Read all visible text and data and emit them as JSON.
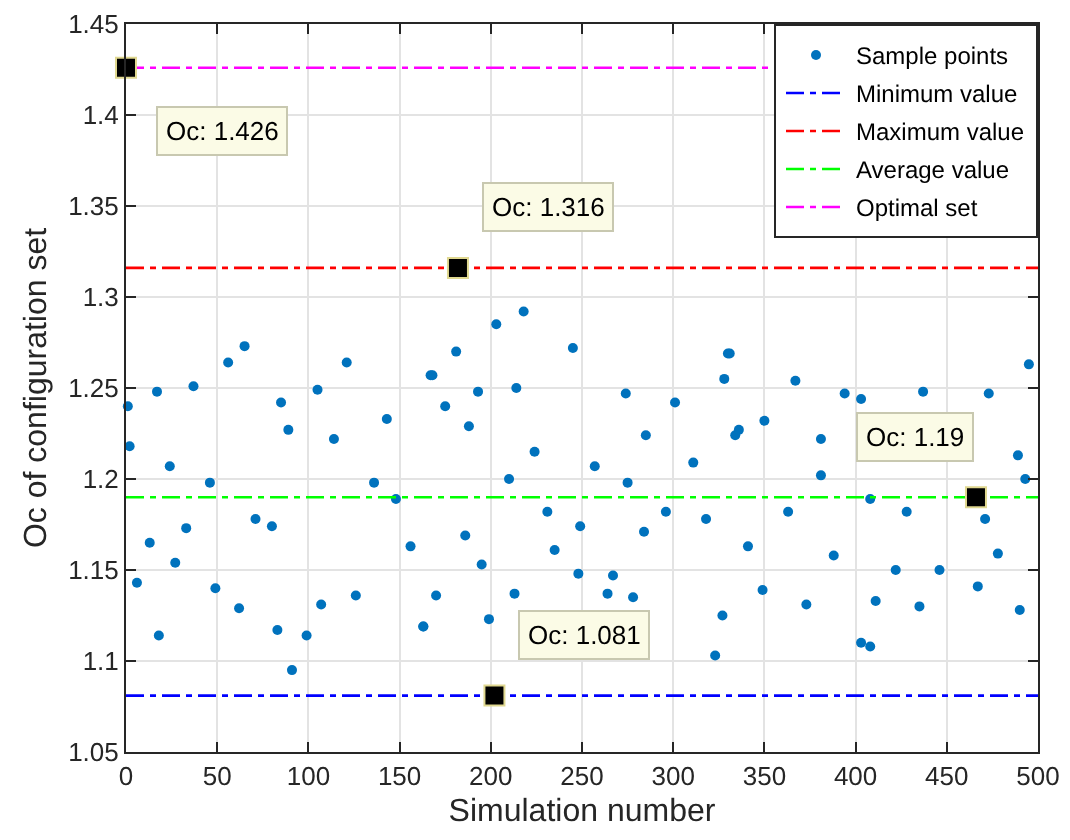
{
  "chart_data": {
    "type": "scatter",
    "xlabel": "Simulation number",
    "ylabel": "Oc of configuration set",
    "xlim": [
      0,
      500
    ],
    "ylim": [
      1.05,
      1.45
    ],
    "xticks": [
      0,
      50,
      100,
      150,
      200,
      250,
      300,
      350,
      400,
      450,
      500
    ],
    "yticks": [
      1.05,
      1.1,
      1.15,
      1.2,
      1.25,
      1.3,
      1.35,
      1.4,
      1.45
    ],
    "grid": true,
    "legend": "top right",
    "marker": "circle",
    "series": [
      {
        "name": "Sample points",
        "color": "#0072bd",
        "x": [
          1,
          2,
          6,
          13,
          17,
          18,
          24,
          27,
          33,
          37,
          46,
          49,
          56,
          62,
          65,
          71,
          80,
          83,
          85,
          89,
          91,
          99,
          105,
          107,
          114,
          121,
          126,
          136,
          143,
          148,
          156,
          163,
          163,
          167,
          168,
          170,
          175,
          181,
          186,
          188,
          193,
          195,
          199,
          203,
          210,
          213,
          214,
          218,
          224,
          231,
          235,
          245,
          248,
          249,
          257,
          264,
          267,
          274,
          275,
          278,
          284,
          285,
          296,
          301,
          311,
          318,
          323,
          327,
          328,
          330,
          331,
          334,
          336,
          341,
          349,
          350,
          363,
          367,
          373,
          381,
          381,
          388,
          394,
          403,
          403,
          408,
          408,
          411,
          422,
          428,
          435,
          437,
          446,
          467,
          471,
          473,
          478,
          489,
          490,
          493,
          495
        ],
        "values": [
          1.24,
          1.218,
          1.143,
          1.165,
          1.248,
          1.114,
          1.207,
          1.154,
          1.173,
          1.251,
          1.198,
          1.14,
          1.264,
          1.129,
          1.273,
          1.178,
          1.174,
          1.117,
          1.242,
          1.227,
          1.095,
          1.114,
          1.249,
          1.131,
          1.222,
          1.264,
          1.136,
          1.198,
          1.233,
          1.189,
          1.163,
          1.119,
          1.119,
          1.257,
          1.257,
          1.136,
          1.24,
          1.27,
          1.169,
          1.229,
          1.248,
          1.153,
          1.123,
          1.285,
          1.2,
          1.137,
          1.25,
          1.292,
          1.215,
          1.182,
          1.161,
          1.272,
          1.148,
          1.174,
          1.207,
          1.137,
          1.147,
          1.247,
          1.198,
          1.135,
          1.171,
          1.224,
          1.182,
          1.242,
          1.209,
          1.178,
          1.103,
          1.125,
          1.255,
          1.269,
          1.269,
          1.224,
          1.227,
          1.163,
          1.139,
          1.232,
          1.182,
          1.254,
          1.131,
          1.222,
          1.202,
          1.158,
          1.247,
          1.244,
          1.11,
          1.108,
          1.189,
          1.133,
          1.15,
          1.182,
          1.13,
          1.248,
          1.15,
          1.141,
          1.178,
          1.247,
          1.159,
          1.213,
          1.128,
          1.2,
          1.263
        ]
      },
      {
        "color": "#000000",
        "marker": "square",
        "x": [
          0,
          182,
          202,
          466
        ],
        "values": [
          1.426,
          1.316,
          1.081,
          1.19
        ]
      }
    ],
    "ref_lines": [
      {
        "axis": "y",
        "value": 1.081,
        "label": "Minimum value",
        "color": "#0000ff",
        "line_style": "dashdot"
      },
      {
        "axis": "y",
        "value": 1.316,
        "label": "Maximum value",
        "color": "#ff0000",
        "line_style": "dashdot"
      },
      {
        "axis": "y",
        "value": 1.19,
        "label": "Average value",
        "color": "#00ff00",
        "line_style": "dashdot"
      },
      {
        "axis": "y",
        "value": 1.426,
        "label": "Optimal set",
        "color": "#ff00ff",
        "line_style": "dashdot"
      }
    ],
    "annotations": [
      {
        "text": "Oc: 1.426",
        "x": 0,
        "y": 1.426
      },
      {
        "text": "Oc: 1.316",
        "x": 182,
        "y": 1.316
      },
      {
        "text": "Oc: 1.081",
        "x": 202,
        "y": 1.081
      },
      {
        "text": "Oc: 1.19",
        "x": 466,
        "y": 1.19
      }
    ]
  }
}
